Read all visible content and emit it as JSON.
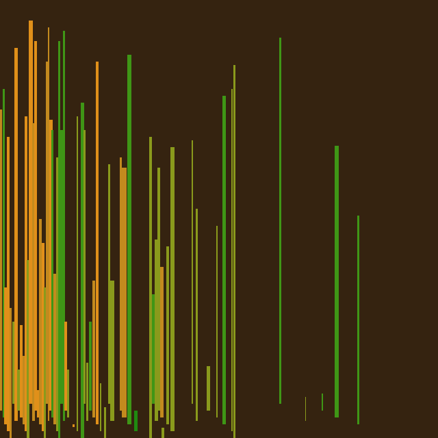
{
  "palette": {
    "background": "#352310",
    "orange": "#e0901a",
    "amber": "#c38a1e",
    "olive": "#8a9a1c",
    "green": "#3f9616",
    "bright_green": "#1f8a10"
  },
  "bar_groups": [
    {
      "color": "orange",
      "count": 18
    },
    {
      "color": "amber",
      "count": 14
    },
    {
      "color": "olive",
      "count": 22
    },
    {
      "color": "green",
      "count": 16
    },
    {
      "color": "bright_green",
      "count": 4
    }
  ]
}
